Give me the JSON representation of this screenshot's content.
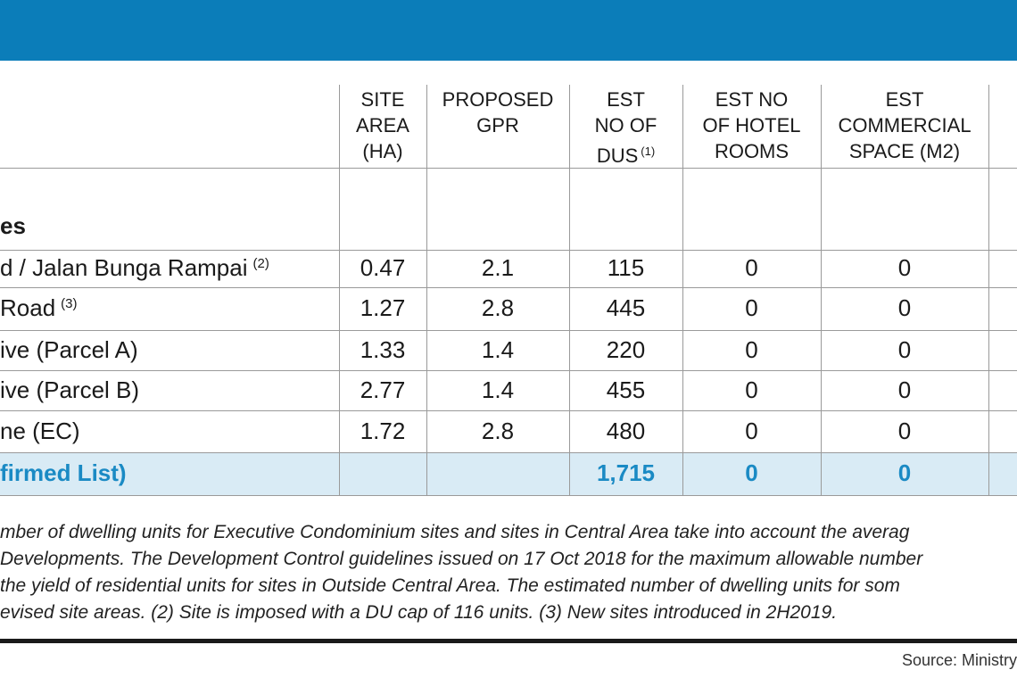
{
  "table": {
    "headers": [
      {
        "lines": [
          "SITE",
          "AREA",
          "(HA)"
        ]
      },
      {
        "lines": [
          "PROPOSED",
          "GPR"
        ]
      },
      {
        "lines": [
          "EST",
          "NO OF",
          "DUS"
        ],
        "note": "(1)"
      },
      {
        "lines": [
          "EST NO",
          "OF HOTEL",
          "ROOMS"
        ]
      },
      {
        "lines": [
          "EST",
          "COMMERCIAL",
          "SPACE (M2)"
        ]
      }
    ],
    "section": "es",
    "rows": [
      {
        "name": "d / Jalan Bunga Rampai",
        "note": "(2)",
        "cells": [
          "0.47",
          "2.1",
          "115",
          "0",
          "0"
        ]
      },
      {
        "name": "Road",
        "note": "(3)",
        "cells": [
          "1.27",
          "2.8",
          "445",
          "0",
          "0"
        ]
      },
      {
        "name": "ive (Parcel A)",
        "cells": [
          "1.33",
          "1.4",
          "220",
          "0",
          "0"
        ]
      },
      {
        "name": "ive (Parcel B)",
        "cells": [
          "2.77",
          "1.4",
          "455",
          "0",
          "0"
        ]
      },
      {
        "name": "ne (EC)",
        "cells": [
          "1.72",
          "2.8",
          "480",
          "0",
          "0"
        ]
      }
    ],
    "total": {
      "name": "firmed List)",
      "cells": [
        "1,715",
        "0",
        "0"
      ]
    }
  },
  "footnotes": [
    "mber of dwelling units for Executive Condominium sites and sites in Central Area take into account the averag",
    "Developments. The Development Control guidelines issued on 17 Oct 2018 for the maximum allowable number",
    " the yield of residential units for sites in Outside Central Area. The estimated number of dwelling units for som",
    "evised site areas. (2) Site is imposed with a DU cap of 116 units. (3) New sites introduced in 2H2019."
  ],
  "source": "Source: Ministry"
}
